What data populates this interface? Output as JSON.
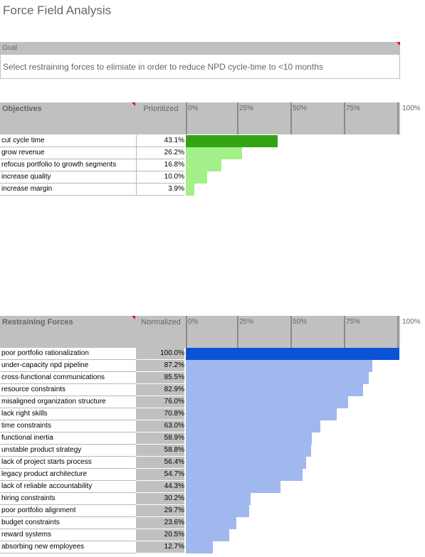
{
  "title": "Force Field Analysis",
  "goal": {
    "label": "Goal",
    "text": "Select restraining forces to elimiate in order to reduce NPD cycle-time to <10 months"
  },
  "scale_ticks": [
    "0%",
    "25%",
    "50%",
    "75%",
    "100%"
  ],
  "objectives": {
    "header": "Objectives",
    "value_header": "Prioritized",
    "top_color": "#33a314",
    "bar_color": "#a3ef8a",
    "rows": [
      {
        "label": "cut cycle time",
        "value": 43.1,
        "display": "43.1%"
      },
      {
        "label": "grow revenue",
        "value": 26.2,
        "display": "26.2%"
      },
      {
        "label": "refocus portfolio to growth segments",
        "value": 16.8,
        "display": "16.8%"
      },
      {
        "label": "increase quality",
        "value": 10.0,
        "display": "10.0%"
      },
      {
        "label": "increase margin",
        "value": 3.9,
        "display": "3.9%"
      }
    ]
  },
  "restraining": {
    "header": "Restraining Forces",
    "value_header": "Normalized",
    "top_color": "#0a52d6",
    "bar_color": "#a0b8ee",
    "rows": [
      {
        "label": "poor portfolio rationalization",
        "value": 100.0,
        "display": "100.0%"
      },
      {
        "label": "under-capacity npd pipeline",
        "value": 87.2,
        "display": "87.2%"
      },
      {
        "label": "cross-functional communications",
        "value": 85.5,
        "display": "85.5%"
      },
      {
        "label": "resource constraints",
        "value": 82.9,
        "display": "82.9%"
      },
      {
        "label": "misaligned organization structure",
        "value": 76.0,
        "display": "76.0%"
      },
      {
        "label": "lack right skills",
        "value": 70.8,
        "display": "70.8%"
      },
      {
        "label": "time constraints",
        "value": 63.0,
        "display": "63.0%"
      },
      {
        "label": "functional inertia",
        "value": 58.9,
        "display": "58.9%"
      },
      {
        "label": "unstable product strategy",
        "value": 58.8,
        "display": "58.8%"
      },
      {
        "label": "lack of project starts process",
        "value": 56.4,
        "display": "56.4%"
      },
      {
        "label": "legacy product architecture",
        "value": 54.7,
        "display": "54.7%"
      },
      {
        "label": "lack of reliable accountability",
        "value": 44.3,
        "display": "44.3%"
      },
      {
        "label": "hiring constraints",
        "value": 30.2,
        "display": "30.2%"
      },
      {
        "label": "poor portfolio alignment",
        "value": 29.7,
        "display": "29.7%"
      },
      {
        "label": "budget constraints",
        "value": 23.6,
        "display": "23.6%"
      },
      {
        "label": "reward systems",
        "value": 20.5,
        "display": "20.5%"
      },
      {
        "label": "absorbing new employees",
        "value": 12.7,
        "display": "12.7%"
      }
    ]
  }
}
